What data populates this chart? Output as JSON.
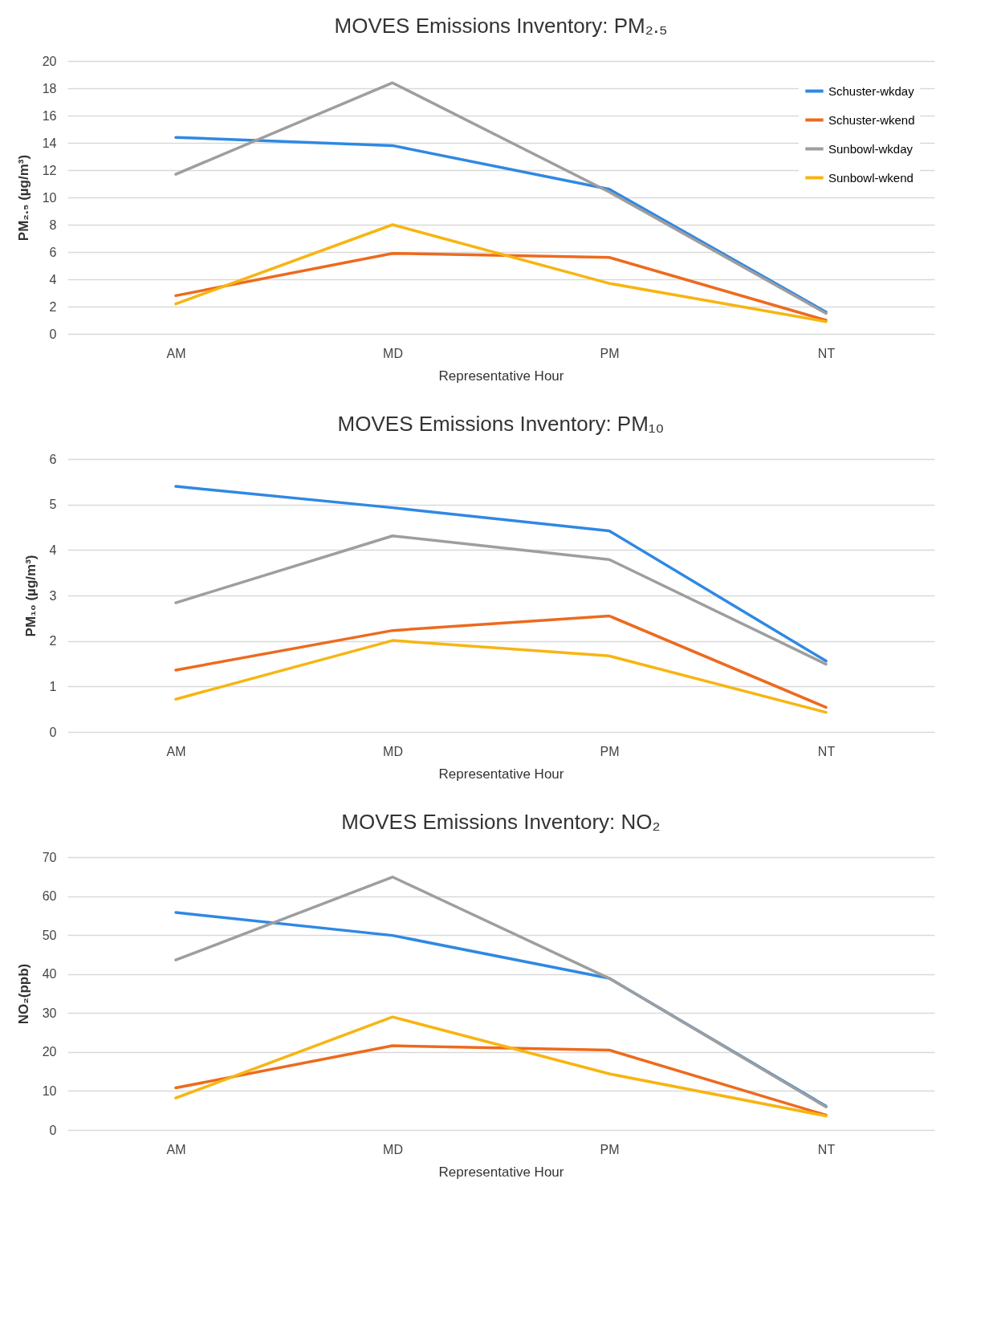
{
  "chart_data": [
    {
      "type": "line",
      "title": "MOVES Emissions Inventory: PM₂.₅",
      "xlabel": "Representative Hour",
      "ylabel": "PM₂.₅ (µg/m³)",
      "categories": [
        "AM",
        "MD",
        "PM",
        "NT"
      ],
      "ylim": [
        0,
        20
      ],
      "yticks": [
        0,
        2,
        4,
        6,
        8,
        10,
        12,
        14,
        16,
        18,
        20
      ],
      "grid": "y",
      "legend": "top right",
      "series": [
        {
          "name": "Schuster-wkday",
          "color": "#2f88e3",
          "values": [
            14.4,
            13.8,
            10.6,
            1.6
          ]
        },
        {
          "name": "Schuster-wkend",
          "color": "#ed6a1e",
          "values": [
            2.8,
            5.9,
            5.6,
            1.0
          ]
        },
        {
          "name": "Sunbowl-wkday",
          "color": "#9e9e9e",
          "values": [
            11.7,
            18.4,
            10.4,
            1.5
          ]
        },
        {
          "name": "Sunbowl-wkend",
          "color": "#f7b512",
          "values": [
            2.2,
            8.0,
            3.7,
            0.9
          ]
        }
      ]
    },
    {
      "type": "line",
      "title": "MOVES Emissions Inventory: PM₁₀",
      "xlabel": "Representative Hour",
      "ylabel": "PM₁₀ (µg/m³)",
      "categories": [
        "AM",
        "MD",
        "PM",
        "NT"
      ],
      "ylim": [
        0,
        6
      ],
      "yticks": [
        0,
        1,
        2,
        3,
        4,
        5,
        6
      ],
      "grid": "y",
      "legend": "top right",
      "series": [
        {
          "name": "Schuster-wkday",
          "color": "#2f88e3",
          "values": [
            5.4,
            4.93,
            4.42,
            1.56
          ]
        },
        {
          "name": "Schuster-wkend",
          "color": "#ed6a1e",
          "values": [
            1.36,
            2.23,
            2.55,
            0.54
          ]
        },
        {
          "name": "Sunbowl-wkday",
          "color": "#9e9e9e",
          "values": [
            2.84,
            4.31,
            3.79,
            1.49
          ]
        },
        {
          "name": "Sunbowl-wkend",
          "color": "#f7b512",
          "values": [
            0.72,
            2.01,
            1.67,
            0.43
          ]
        }
      ]
    },
    {
      "type": "line",
      "title": "MOVES Emissions Inventory: NO₂",
      "xlabel": "Representative Hour",
      "ylabel": "NO₂(ppb)",
      "categories": [
        "AM",
        "MD",
        "PM",
        "NT"
      ],
      "ylim": [
        0,
        70
      ],
      "yticks": [
        0,
        10,
        20,
        30,
        40,
        50,
        60,
        70
      ],
      "grid": "y",
      "legend": "top right",
      "series": [
        {
          "name": "Schuster-wkday",
          "color": "#2f88e3",
          "values": [
            55.8,
            49.9,
            38.9,
            6.1
          ]
        },
        {
          "name": "Schuster-wkend",
          "color": "#ed6a1e",
          "values": [
            10.8,
            21.6,
            20.5,
            3.8
          ]
        },
        {
          "name": "Sunbowl-wkday",
          "color": "#9e9e9e",
          "values": [
            43.6,
            64.9,
            38.9,
            5.9
          ]
        },
        {
          "name": "Sunbowl-wkend",
          "color": "#f7b512",
          "values": [
            8.2,
            29.0,
            14.4,
            3.6
          ]
        }
      ]
    }
  ]
}
